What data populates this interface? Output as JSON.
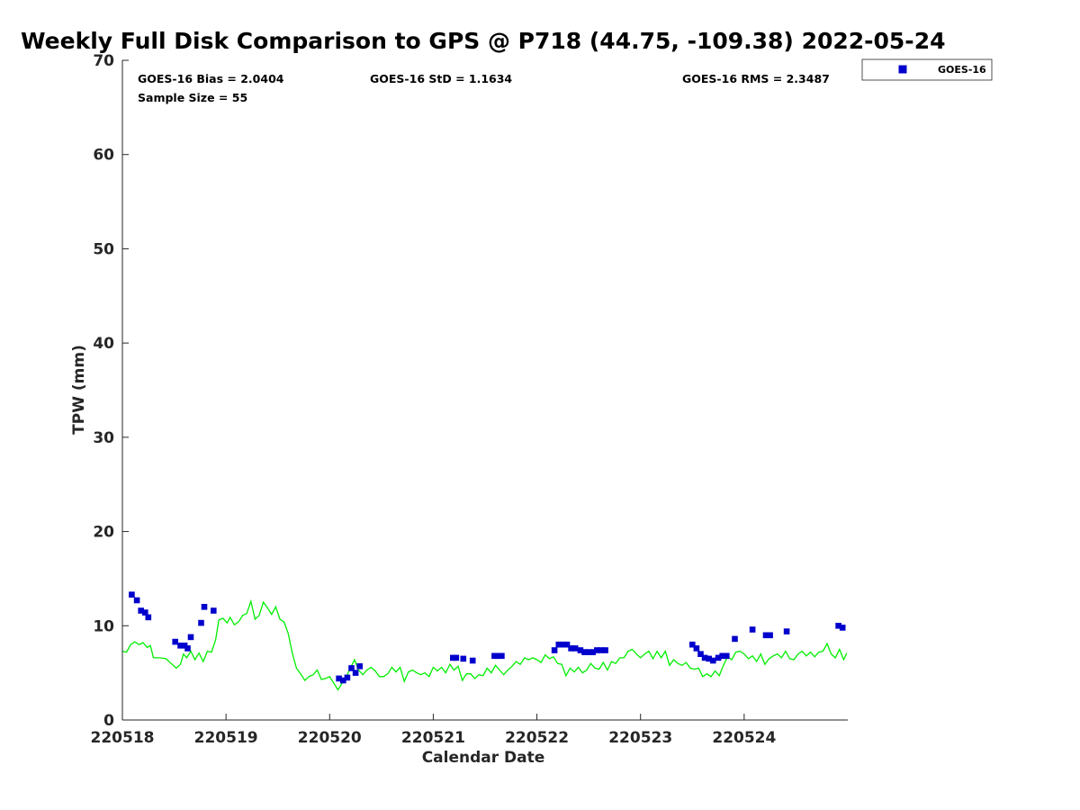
{
  "chart_data": {
    "type": "scatter",
    "title": "Weekly Full Disk Comparison to GPS @ P718 (44.75, -109.38) 2022-05-24",
    "xlabel": "Calendar Date",
    "ylabel": "TPW (mm)",
    "xlim": [
      220518,
      220525
    ],
    "ylim": [
      0,
      70
    ],
    "x_ticks": [
      "220518",
      "220519",
      "220520",
      "220521",
      "220522",
      "220523",
      "220524"
    ],
    "y_ticks": [
      "0",
      "10",
      "20",
      "30",
      "40",
      "50",
      "60",
      "70"
    ],
    "grid": false,
    "legend_position": "top-right outside",
    "stats": {
      "bias": "GOES-16 Bias = 2.0404",
      "std": "GOES-16 StD = 1.1634",
      "rms": "GOES-16 RMS = 2.3487",
      "sample_size": "Sample Size = 55"
    },
    "series": [
      {
        "name": "GOES-16",
        "kind": "markers",
        "color": "#0000cc",
        "marker": "square",
        "points": [
          [
            220518.09,
            13.3
          ],
          [
            220518.14,
            12.7
          ],
          [
            220518.18,
            11.6
          ],
          [
            220518.22,
            11.4
          ],
          [
            220518.25,
            10.9
          ],
          [
            220518.51,
            8.3
          ],
          [
            220518.56,
            7.9
          ],
          [
            220518.6,
            7.9
          ],
          [
            220518.63,
            7.6
          ],
          [
            220518.66,
            8.8
          ],
          [
            220518.76,
            10.3
          ],
          [
            220518.79,
            12.0
          ],
          [
            220518.88,
            11.6
          ],
          [
            220520.09,
            4.4
          ],
          [
            220520.13,
            4.2
          ],
          [
            220520.17,
            4.5
          ],
          [
            220520.21,
            5.5
          ],
          [
            220520.25,
            5.0
          ],
          [
            220520.29,
            5.7
          ],
          [
            220521.19,
            6.6
          ],
          [
            220521.22,
            6.6
          ],
          [
            220521.29,
            6.5
          ],
          [
            220521.38,
            6.3
          ],
          [
            220521.59,
            6.8
          ],
          [
            220521.62,
            6.8
          ],
          [
            220521.66,
            6.8
          ],
          [
            220522.17,
            7.4
          ],
          [
            220522.21,
            8.0
          ],
          [
            220522.25,
            8.0
          ],
          [
            220522.29,
            8.0
          ],
          [
            220522.33,
            7.6
          ],
          [
            220522.37,
            7.6
          ],
          [
            220522.42,
            7.4
          ],
          [
            220522.46,
            7.2
          ],
          [
            220522.5,
            7.2
          ],
          [
            220522.54,
            7.2
          ],
          [
            220522.58,
            7.4
          ],
          [
            220522.62,
            7.4
          ],
          [
            220522.66,
            7.4
          ],
          [
            220523.5,
            8.0
          ],
          [
            220523.54,
            7.6
          ],
          [
            220523.58,
            7.0
          ],
          [
            220523.62,
            6.6
          ],
          [
            220523.66,
            6.5
          ],
          [
            220523.7,
            6.3
          ],
          [
            220523.75,
            6.6
          ],
          [
            220523.79,
            6.8
          ],
          [
            220523.83,
            6.8
          ],
          [
            220523.91,
            8.6
          ],
          [
            220524.08,
            9.6
          ],
          [
            220524.21,
            9.0
          ],
          [
            220524.25,
            9.0
          ],
          [
            220524.41,
            9.4
          ],
          [
            220524.91,
            10.0
          ],
          [
            220524.95,
            9.8
          ]
        ]
      },
      {
        "kind": "line",
        "color": "#00ee00",
        "points": [
          [
            220518.0,
            7.3
          ],
          [
            220518.04,
            7.2
          ],
          [
            220518.08,
            8.0
          ],
          [
            220518.12,
            8.3
          ],
          [
            220518.16,
            8.0
          ],
          [
            220518.2,
            8.2
          ],
          [
            220518.24,
            7.7
          ],
          [
            220518.27,
            7.9
          ],
          [
            220518.3,
            6.6
          ],
          [
            220518.36,
            6.6
          ],
          [
            220518.42,
            6.5
          ],
          [
            220518.47,
            6.0
          ],
          [
            220518.52,
            5.5
          ],
          [
            220518.56,
            5.9
          ],
          [
            220518.59,
            7.0
          ],
          [
            220518.62,
            6.6
          ],
          [
            220518.66,
            7.3
          ],
          [
            220518.7,
            6.4
          ],
          [
            220518.74,
            7.1
          ],
          [
            220518.78,
            6.2
          ],
          [
            220518.82,
            7.3
          ],
          [
            220518.86,
            7.2
          ],
          [
            220518.9,
            8.5
          ],
          [
            220518.93,
            10.6
          ],
          [
            220518.97,
            10.8
          ],
          [
            220519.01,
            10.3
          ],
          [
            220519.04,
            10.9
          ],
          [
            220519.08,
            10.1
          ],
          [
            220519.12,
            10.4
          ],
          [
            220519.16,
            11.1
          ],
          [
            220519.2,
            11.3
          ],
          [
            220519.24,
            12.6
          ],
          [
            220519.28,
            10.7
          ],
          [
            220519.32,
            11.1
          ],
          [
            220519.36,
            12.5
          ],
          [
            220519.4,
            11.9
          ],
          [
            220519.44,
            11.2
          ],
          [
            220519.48,
            12.0
          ],
          [
            220519.52,
            10.7
          ],
          [
            220519.56,
            10.4
          ],
          [
            220519.6,
            9.2
          ],
          [
            220519.64,
            7.1
          ],
          [
            220519.68,
            5.5
          ],
          [
            220519.72,
            4.9
          ],
          [
            220519.76,
            4.2
          ],
          [
            220519.8,
            4.6
          ],
          [
            220519.84,
            4.8
          ],
          [
            220519.88,
            5.3
          ],
          [
            220519.92,
            4.3
          ],
          [
            220519.96,
            4.4
          ],
          [
            220520.0,
            4.6
          ],
          [
            220520.04,
            3.9
          ],
          [
            220520.08,
            3.2
          ],
          [
            220520.12,
            3.9
          ],
          [
            220520.16,
            4.6
          ],
          [
            220520.2,
            5.5
          ],
          [
            220520.24,
            6.4
          ],
          [
            220520.28,
            5.3
          ],
          [
            220520.32,
            4.8
          ],
          [
            220520.36,
            5.3
          ],
          [
            220520.4,
            5.6
          ],
          [
            220520.44,
            5.2
          ],
          [
            220520.48,
            4.6
          ],
          [
            220520.52,
            4.6
          ],
          [
            220520.56,
            4.9
          ],
          [
            220520.6,
            5.6
          ],
          [
            220520.64,
            5.1
          ],
          [
            220520.68,
            5.6
          ],
          [
            220520.72,
            4.1
          ],
          [
            220520.76,
            5.1
          ],
          [
            220520.8,
            5.3
          ],
          [
            220520.84,
            5.0
          ],
          [
            220520.88,
            4.8
          ],
          [
            220520.92,
            5.0
          ],
          [
            220520.96,
            4.6
          ],
          [
            220521.0,
            5.6
          ],
          [
            220521.04,
            5.2
          ],
          [
            220521.08,
            5.6
          ],
          [
            220521.12,
            5.0
          ],
          [
            220521.16,
            5.9
          ],
          [
            220521.2,
            5.3
          ],
          [
            220521.24,
            5.7
          ],
          [
            220521.28,
            4.2
          ],
          [
            220521.32,
            4.9
          ],
          [
            220521.36,
            4.9
          ],
          [
            220521.4,
            4.4
          ],
          [
            220521.44,
            4.8
          ],
          [
            220521.48,
            4.7
          ],
          [
            220521.52,
            5.5
          ],
          [
            220521.56,
            5.0
          ],
          [
            220521.6,
            5.8
          ],
          [
            220521.64,
            5.3
          ],
          [
            220521.68,
            4.8
          ],
          [
            220521.72,
            5.3
          ],
          [
            220521.76,
            5.7
          ],
          [
            220521.8,
            6.2
          ],
          [
            220521.84,
            5.9
          ],
          [
            220521.88,
            6.6
          ],
          [
            220521.92,
            6.4
          ],
          [
            220521.96,
            6.6
          ],
          [
            220522.0,
            6.4
          ],
          [
            220522.04,
            6.1
          ],
          [
            220522.08,
            6.9
          ],
          [
            220522.12,
            6.5
          ],
          [
            220522.16,
            6.7
          ],
          [
            220522.2,
            6.0
          ],
          [
            220522.24,
            5.9
          ],
          [
            220522.28,
            4.7
          ],
          [
            220522.32,
            5.5
          ],
          [
            220522.36,
            5.1
          ],
          [
            220522.4,
            5.6
          ],
          [
            220522.44,
            5.0
          ],
          [
            220522.48,
            5.3
          ],
          [
            220522.52,
            6.0
          ],
          [
            220522.56,
            5.5
          ],
          [
            220522.6,
            5.4
          ],
          [
            220522.64,
            6.1
          ],
          [
            220522.68,
            5.3
          ],
          [
            220522.72,
            6.2
          ],
          [
            220522.76,
            6.0
          ],
          [
            220522.8,
            6.6
          ],
          [
            220522.84,
            6.6
          ],
          [
            220522.88,
            7.3
          ],
          [
            220522.92,
            7.5
          ],
          [
            220522.96,
            7.0
          ],
          [
            220523.0,
            6.6
          ],
          [
            220523.04,
            7.0
          ],
          [
            220523.08,
            7.3
          ],
          [
            220523.12,
            6.5
          ],
          [
            220523.16,
            7.3
          ],
          [
            220523.2,
            6.6
          ],
          [
            220523.24,
            7.3
          ],
          [
            220523.28,
            5.8
          ],
          [
            220523.32,
            6.4
          ],
          [
            220523.36,
            6.0
          ],
          [
            220523.4,
            5.8
          ],
          [
            220523.44,
            6.1
          ],
          [
            220523.48,
            5.5
          ],
          [
            220523.52,
            5.4
          ],
          [
            220523.56,
            5.5
          ],
          [
            220523.6,
            4.6
          ],
          [
            220523.64,
            4.9
          ],
          [
            220523.68,
            4.6
          ],
          [
            220523.72,
            5.2
          ],
          [
            220523.76,
            4.7
          ],
          [
            220523.8,
            5.8
          ],
          [
            220523.84,
            6.7
          ],
          [
            220523.88,
            6.4
          ],
          [
            220523.92,
            7.2
          ],
          [
            220523.96,
            7.3
          ],
          [
            220524.0,
            7.0
          ],
          [
            220524.04,
            6.5
          ],
          [
            220524.08,
            6.8
          ],
          [
            220524.12,
            6.2
          ],
          [
            220524.16,
            7.0
          ],
          [
            220524.2,
            5.9
          ],
          [
            220524.24,
            6.5
          ],
          [
            220524.28,
            6.8
          ],
          [
            220524.32,
            7.0
          ],
          [
            220524.36,
            6.6
          ],
          [
            220524.4,
            7.3
          ],
          [
            220524.44,
            6.5
          ],
          [
            220524.48,
            6.4
          ],
          [
            220524.52,
            7.0
          ],
          [
            220524.56,
            7.3
          ],
          [
            220524.6,
            6.8
          ],
          [
            220524.64,
            7.2
          ],
          [
            220524.68,
            6.7
          ],
          [
            220524.72,
            7.2
          ],
          [
            220524.76,
            7.3
          ],
          [
            220524.8,
            8.1
          ],
          [
            220524.84,
            7.0
          ],
          [
            220524.88,
            6.6
          ],
          [
            220524.92,
            7.5
          ],
          [
            220524.96,
            6.4
          ],
          [
            220524.99,
            7.1
          ]
        ]
      }
    ]
  }
}
